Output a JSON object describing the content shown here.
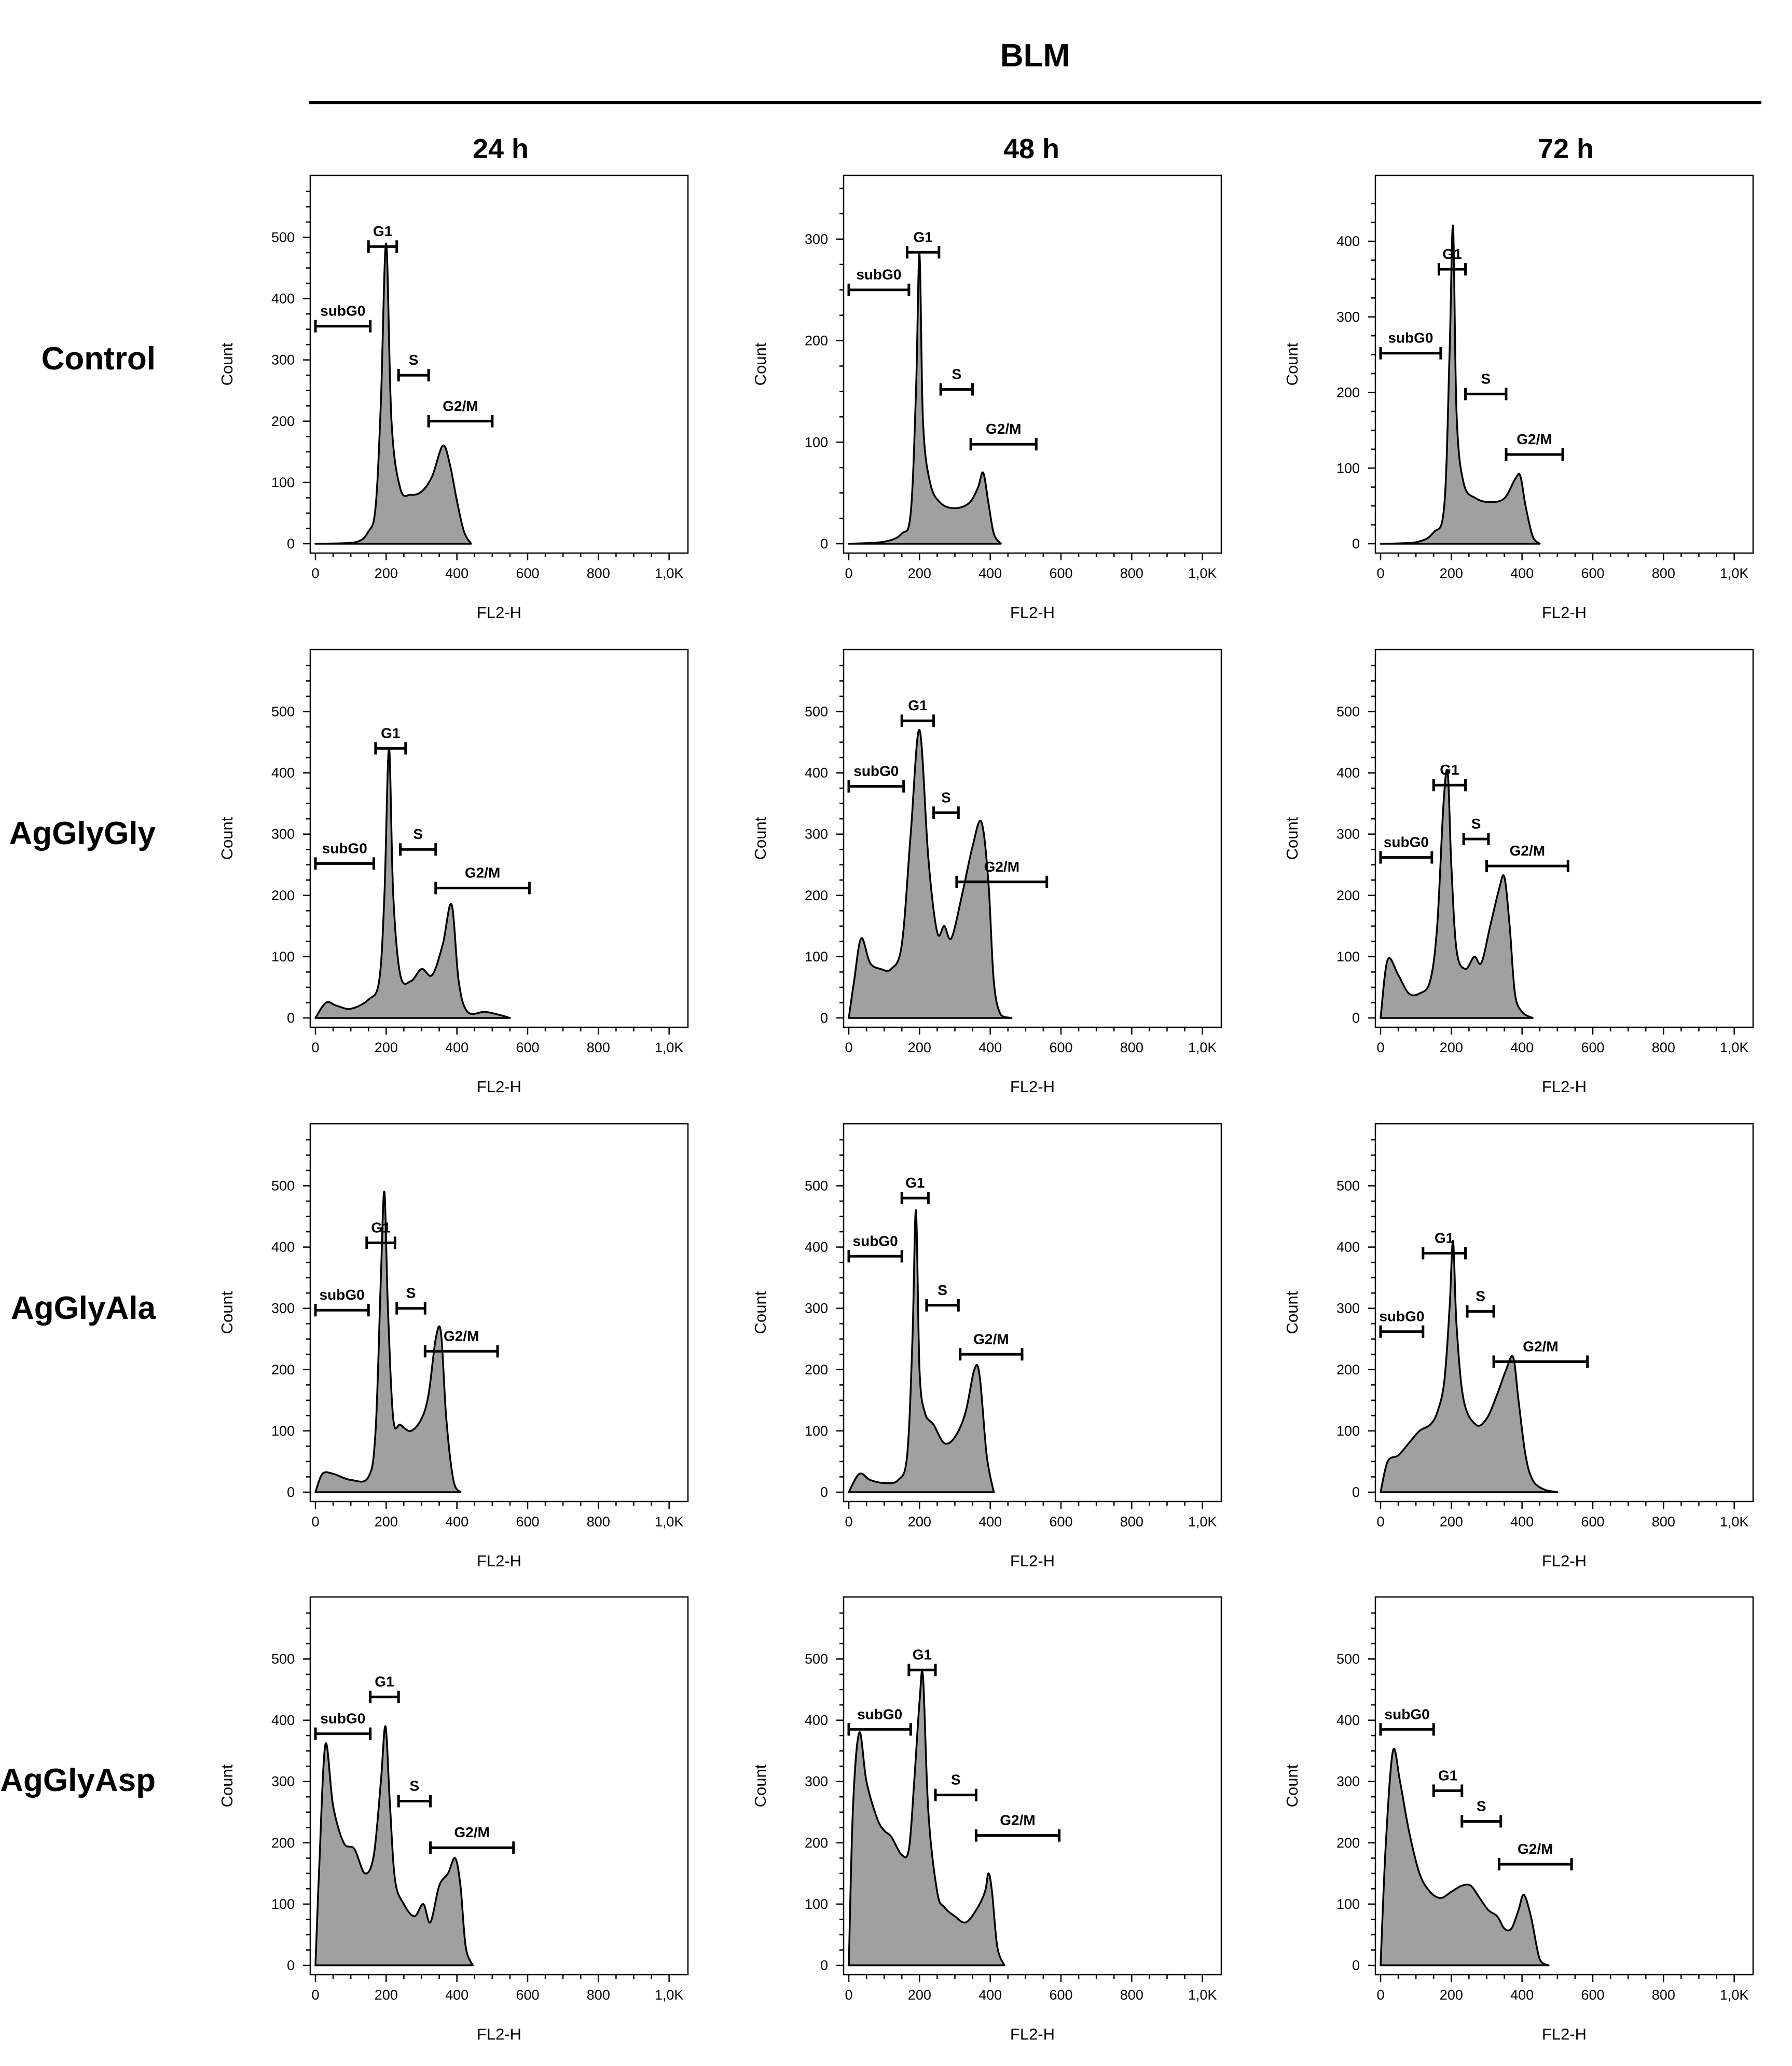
{
  "figure": {
    "header": "BLM",
    "columns": [
      "24 h",
      "48 h",
      "72 h"
    ],
    "rows": [
      "Control",
      "AgGlyGly",
      "AgGlyAla",
      "AgGlyAsp"
    ],
    "xlabel": "FL2-H",
    "ylabel": "Count",
    "fill_color": "#a0a0a0"
  },
  "chart_data": [
    {
      "type": "area",
      "row": "Control",
      "column": "24 h",
      "xlabel": "FL2-H",
      "ylabel": "Count",
      "xlim": [
        0,
        1024
      ],
      "ylim": [
        0,
        580
      ],
      "xticks": [
        "0",
        "200",
        "400",
        "600",
        "800",
        "1,0K"
      ],
      "yticks": [
        0,
        100,
        200,
        300,
        400,
        500
      ],
      "curve": {
        "x": [
          0,
          110,
          150,
          170,
          185,
          200,
          215,
          240,
          270,
          300,
          330,
          360,
          380,
          400,
          420,
          440
        ],
        "y": [
          0,
          2,
          20,
          60,
          230,
          490,
          200,
          90,
          80,
          85,
          110,
          160,
          130,
          70,
          20,
          0
        ]
      },
      "gates": [
        {
          "label": "subG0",
          "range": [
            0,
            155
          ],
          "y": 355
        },
        {
          "label": "G1",
          "range": [
            150,
            230
          ],
          "y": 485
        },
        {
          "label": "S",
          "range": [
            235,
            320
          ],
          "y": 275
        },
        {
          "label": "G2/M",
          "range": [
            320,
            500
          ],
          "y": 200
        }
      ]
    },
    {
      "type": "area",
      "row": "Control",
      "column": "48 h",
      "xlabel": "FL2-H",
      "ylabel": "Count",
      "xlim": [
        0,
        1024
      ],
      "ylim": [
        0,
        350
      ],
      "xticks": [
        "0",
        "200",
        "400",
        "600",
        "800",
        "1,0K"
      ],
      "yticks": [
        0,
        100,
        200,
        300
      ],
      "curve": {
        "x": [
          0,
          100,
          150,
          175,
          190,
          200,
          210,
          230,
          260,
          300,
          340,
          365,
          380,
          395,
          410,
          430
        ],
        "y": [
          0,
          2,
          10,
          30,
          150,
          285,
          120,
          60,
          40,
          35,
          40,
          55,
          70,
          40,
          10,
          0
        ]
      },
      "gates": [
        {
          "label": "subG0",
          "range": [
            0,
            170
          ],
          "y": 250
        },
        {
          "label": "G1",
          "range": [
            165,
            255
          ],
          "y": 287
        },
        {
          "label": "S",
          "range": [
            260,
            350
          ],
          "y": 152
        },
        {
          "label": "G2/M",
          "range": [
            345,
            530
          ],
          "y": 98
        }
      ]
    },
    {
      "type": "area",
      "row": "Control",
      "column": "72 h",
      "xlabel": "FL2-H",
      "ylabel": "Count",
      "xlim": [
        0,
        1024
      ],
      "ylim": [
        0,
        470
      ],
      "xticks": [
        "0",
        "200",
        "400",
        "600",
        "800",
        "1,0K"
      ],
      "yticks": [
        0,
        100,
        200,
        300,
        400
      ],
      "curve": {
        "x": [
          0,
          100,
          150,
          180,
          195,
          205,
          215,
          235,
          270,
          310,
          350,
          380,
          395,
          410,
          430,
          450
        ],
        "y": [
          0,
          2,
          15,
          50,
          250,
          420,
          170,
          80,
          60,
          55,
          60,
          85,
          90,
          50,
          10,
          0
        ]
      },
      "gates": [
        {
          "label": "subG0",
          "range": [
            0,
            170
          ],
          "y": 252
        },
        {
          "label": "G1",
          "range": [
            165,
            240
          ],
          "y": 363
        },
        {
          "label": "S",
          "range": [
            240,
            355
          ],
          "y": 198
        },
        {
          "label": "G2/M",
          "range": [
            355,
            515
          ],
          "y": 118
        }
      ]
    },
    {
      "type": "area",
      "row": "AgGlyGly",
      "column": "24 h",
      "xlabel": "FL2-H",
      "ylabel": "Count",
      "xlim": [
        0,
        1024
      ],
      "ylim": [
        0,
        580
      ],
      "xticks": [
        "0",
        "200",
        "400",
        "600",
        "800",
        "1,0K"
      ],
      "yticks": [
        0,
        100,
        200,
        300,
        400,
        500
      ],
      "curve": {
        "x": [
          0,
          30,
          60,
          100,
          150,
          180,
          195,
          208,
          220,
          240,
          270,
          300,
          330,
          360,
          385,
          405,
          430,
          480,
          520,
          550
        ],
        "y": [
          0,
          25,
          20,
          15,
          30,
          60,
          200,
          440,
          200,
          70,
          60,
          80,
          70,
          120,
          185,
          60,
          10,
          10,
          5,
          0
        ]
      },
      "gates": [
        {
          "label": "subG0",
          "range": [
            0,
            165
          ],
          "y": 252
        },
        {
          "label": "G1",
          "range": [
            170,
            255
          ],
          "y": 440
        },
        {
          "label": "S",
          "range": [
            240,
            340
          ],
          "y": 275
        },
        {
          "label": "G2/M",
          "range": [
            340,
            605
          ],
          "y": 212
        }
      ]
    },
    {
      "type": "area",
      "row": "AgGlyGly",
      "column": "48 h",
      "xlabel": "FL2-H",
      "ylabel": "Count",
      "xlim": [
        0,
        1024
      ],
      "ylim": [
        0,
        580
      ],
      "xticks": [
        "0",
        "200",
        "400",
        "600",
        "800",
        "1,0K"
      ],
      "yticks": [
        0,
        100,
        200,
        300,
        400,
        500
      ],
      "curve": {
        "x": [
          0,
          15,
          35,
          60,
          90,
          120,
          150,
          175,
          200,
          225,
          250,
          270,
          290,
          320,
          350,
          375,
          395,
          410,
          430,
          460
        ],
        "y": [
          0,
          60,
          130,
          90,
          80,
          80,
          120,
          300,
          470,
          260,
          140,
          150,
          130,
          200,
          280,
          320,
          220,
          60,
          5,
          0
        ]
      },
      "gates": [
        {
          "label": "subG0",
          "range": [
            0,
            155
          ],
          "y": 378
        },
        {
          "label": "G1",
          "range": [
            150,
            240
          ],
          "y": 485
        },
        {
          "label": "S",
          "range": [
            240,
            310
          ],
          "y": 335
        },
        {
          "label": "G2/M",
          "range": [
            305,
            560
          ],
          "y": 222
        }
      ]
    },
    {
      "type": "area",
      "row": "AgGlyGly",
      "column": "72 h",
      "xlabel": "FL2-H",
      "ylabel": "Count",
      "xlim": [
        0,
        1024
      ],
      "ylim": [
        0,
        580
      ],
      "xticks": [
        "0",
        "200",
        "400",
        "600",
        "800",
        "1,0K"
      ],
      "yticks": [
        0,
        100,
        200,
        300,
        400,
        500
      ],
      "curve": {
        "x": [
          0,
          20,
          50,
          80,
          110,
          140,
          160,
          178,
          190,
          200,
          215,
          240,
          265,
          285,
          310,
          335,
          350,
          365,
          380,
          400,
          430
        ],
        "y": [
          0,
          95,
          70,
          40,
          40,
          60,
          150,
          350,
          400,
          250,
          110,
          80,
          100,
          90,
          150,
          210,
          230,
          150,
          40,
          10,
          0
        ]
      },
      "gates": [
        {
          "label": "subG0",
          "range": [
            0,
            145
          ],
          "y": 262
        },
        {
          "label": "G1",
          "range": [
            150,
            240
          ],
          "y": 380
        },
        {
          "label": "S",
          "range": [
            235,
            305
          ],
          "y": 292
        },
        {
          "label": "G2/M",
          "range": [
            300,
            530
          ],
          "y": 248
        }
      ]
    },
    {
      "type": "area",
      "row": "AgGlyAla",
      "column": "24 h",
      "xlabel": "FL2-H",
      "ylabel": "Count",
      "xlim": [
        0,
        1024
      ],
      "ylim": [
        0,
        580
      ],
      "xticks": [
        "0",
        "200",
        "400",
        "600",
        "800",
        "1,0K"
      ],
      "yticks": [
        0,
        100,
        200,
        300,
        400,
        500
      ],
      "curve": {
        "x": [
          0,
          20,
          50,
          100,
          150,
          170,
          185,
          195,
          205,
          220,
          240,
          270,
          300,
          320,
          340,
          355,
          370,
          390,
          410
        ],
        "y": [
          0,
          30,
          30,
          20,
          25,
          100,
          350,
          490,
          300,
          120,
          110,
          100,
          120,
          160,
          250,
          260,
          120,
          20,
          0
        ]
      },
      "gates": [
        {
          "label": "subG0",
          "range": [
            0,
            150
          ],
          "y": 297
        },
        {
          "label": "G1",
          "range": [
            145,
            225
          ],
          "y": 407
        },
        {
          "label": "S",
          "range": [
            230,
            310
          ],
          "y": 300
        },
        {
          "label": "G2/M",
          "range": [
            310,
            515
          ],
          "y": 230
        }
      ]
    },
    {
      "type": "area",
      "row": "AgGlyAla",
      "column": "48 h",
      "xlabel": "FL2-H",
      "ylabel": "Count",
      "xlim": [
        0,
        1024
      ],
      "ylim": [
        0,
        580
      ],
      "xticks": [
        "0",
        "200",
        "400",
        "600",
        "800",
        "1,0K"
      ],
      "yticks": [
        0,
        100,
        200,
        300,
        400,
        500
      ],
      "curve": {
        "x": [
          0,
          30,
          60,
          100,
          140,
          165,
          180,
          190,
          200,
          215,
          240,
          270,
          300,
          330,
          355,
          370,
          390,
          410
        ],
        "y": [
          0,
          30,
          20,
          15,
          20,
          60,
          250,
          460,
          200,
          130,
          110,
          80,
          90,
          130,
          200,
          190,
          60,
          0
        ]
      },
      "gates": [
        {
          "label": "subG0",
          "range": [
            0,
            150
          ],
          "y": 385
        },
        {
          "label": "G1",
          "range": [
            150,
            225
          ],
          "y": 480
        },
        {
          "label": "S",
          "range": [
            220,
            310
          ],
          "y": 305
        },
        {
          "label": "G2/M",
          "range": [
            315,
            490
          ],
          "y": 225
        }
      ]
    },
    {
      "type": "area",
      "row": "AgGlyAla",
      "column": "72 h",
      "xlabel": "FL2-H",
      "ylabel": "Count",
      "xlim": [
        0,
        1024
      ],
      "ylim": [
        0,
        580
      ],
      "xticks": [
        "0",
        "200",
        "400",
        "600",
        "800",
        "1,0K"
      ],
      "yticks": [
        0,
        100,
        200,
        300,
        400,
        500
      ],
      "curve": {
        "x": [
          0,
          20,
          50,
          80,
          110,
          140,
          160,
          180,
          195,
          205,
          215,
          235,
          270,
          300,
          330,
          355,
          375,
          390,
          410,
          430,
          460,
          500
        ],
        "y": [
          0,
          50,
          60,
          80,
          100,
          110,
          130,
          180,
          300,
          410,
          270,
          150,
          110,
          120,
          160,
          200,
          220,
          150,
          60,
          20,
          5,
          0
        ]
      },
      "gates": [
        {
          "label": "subG0",
          "range": [
            0,
            120
          ],
          "y": 262
        },
        {
          "label": "G1",
          "range": [
            120,
            240
          ],
          "y": 390
        },
        {
          "label": "S",
          "range": [
            245,
            320
          ],
          "y": 295
        },
        {
          "label": "G2/M",
          "range": [
            320,
            585
          ],
          "y": 213
        }
      ]
    },
    {
      "type": "area",
      "row": "AgGlyAsp",
      "column": "24 h",
      "xlabel": "FL2-H",
      "ylabel": "Count",
      "xlim": [
        0,
        1024
      ],
      "ylim": [
        0,
        580
      ],
      "xticks": [
        "0",
        "200",
        "400",
        "600",
        "800",
        "1,0K"
      ],
      "yticks": [
        0,
        100,
        200,
        300,
        400,
        500
      ],
      "curve": {
        "x": [
          0,
          10,
          28,
          50,
          80,
          110,
          140,
          165,
          185,
          198,
          210,
          225,
          250,
          280,
          305,
          325,
          350,
          375,
          395,
          410,
          425,
          445
        ],
        "y": [
          0,
          150,
          360,
          260,
          200,
          190,
          150,
          180,
          300,
          390,
          270,
          140,
          100,
          80,
          100,
          70,
          130,
          150,
          175,
          130,
          30,
          0
        ]
      },
      "gates": [
        {
          "label": "subG0",
          "range": [
            0,
            155
          ],
          "y": 378
        },
        {
          "label": "G1",
          "range": [
            155,
            235
          ],
          "y": 438
        },
        {
          "label": "S",
          "range": [
            235,
            325
          ],
          "y": 268
        },
        {
          "label": "G2/M",
          "range": [
            325,
            560
          ],
          "y": 192
        }
      ]
    },
    {
      "type": "area",
      "row": "AgGlyAsp",
      "column": "48 h",
      "xlabel": "FL2-H",
      "ylabel": "Count",
      "xlim": [
        0,
        1024
      ],
      "ylim": [
        0,
        580
      ],
      "xticks": [
        "0",
        "200",
        "400",
        "600",
        "800",
        "1,0K"
      ],
      "yticks": [
        0,
        100,
        200,
        300,
        400,
        500
      ],
      "curve": {
        "x": [
          0,
          12,
          30,
          50,
          80,
          100,
          120,
          150,
          170,
          185,
          200,
          210,
          225,
          250,
          270,
          300,
          330,
          360,
          385,
          395,
          405,
          420,
          440
        ],
        "y": [
          0,
          260,
          380,
          300,
          240,
          220,
          210,
          180,
          190,
          300,
          430,
          470,
          250,
          120,
          95,
          80,
          70,
          90,
          120,
          150,
          120,
          30,
          0
        ]
      },
      "gates": [
        {
          "label": "subG0",
          "range": [
            0,
            175
          ],
          "y": 385
        },
        {
          "label": "G1",
          "range": [
            170,
            245
          ],
          "y": 482
        },
        {
          "label": "S",
          "range": [
            245,
            360
          ],
          "y": 278
        },
        {
          "label": "G2/M",
          "range": [
            360,
            595
          ],
          "y": 212
        }
      ]
    },
    {
      "type": "area",
      "row": "AgGlyAsp",
      "column": "72 h",
      "xlabel": "FL2-H",
      "ylabel": "Count",
      "xlim": [
        0,
        1024
      ],
      "ylim": [
        0,
        580
      ],
      "xticks": [
        "0",
        "200",
        "400",
        "600",
        "800",
        "1,0K"
      ],
      "yticks": [
        0,
        100,
        200,
        300,
        400,
        500
      ],
      "curve": {
        "x": [
          0,
          15,
          35,
          55,
          80,
          110,
          140,
          170,
          200,
          230,
          255,
          280,
          305,
          330,
          350,
          370,
          390,
          405,
          425,
          450,
          475
        ],
        "y": [
          0,
          200,
          350,
          300,
          220,
          150,
          120,
          110,
          120,
          130,
          130,
          110,
          90,
          80,
          60,
          60,
          90,
          115,
          80,
          10,
          0
        ]
      },
      "gates": [
        {
          "label": "subG0",
          "range": [
            0,
            150
          ],
          "y": 385
        },
        {
          "label": "G1",
          "range": [
            150,
            230
          ],
          "y": 285
        },
        {
          "label": "S",
          "range": [
            230,
            340
          ],
          "y": 235
        },
        {
          "label": "G2/M",
          "range": [
            335,
            540
          ],
          "y": 165
        }
      ]
    }
  ]
}
